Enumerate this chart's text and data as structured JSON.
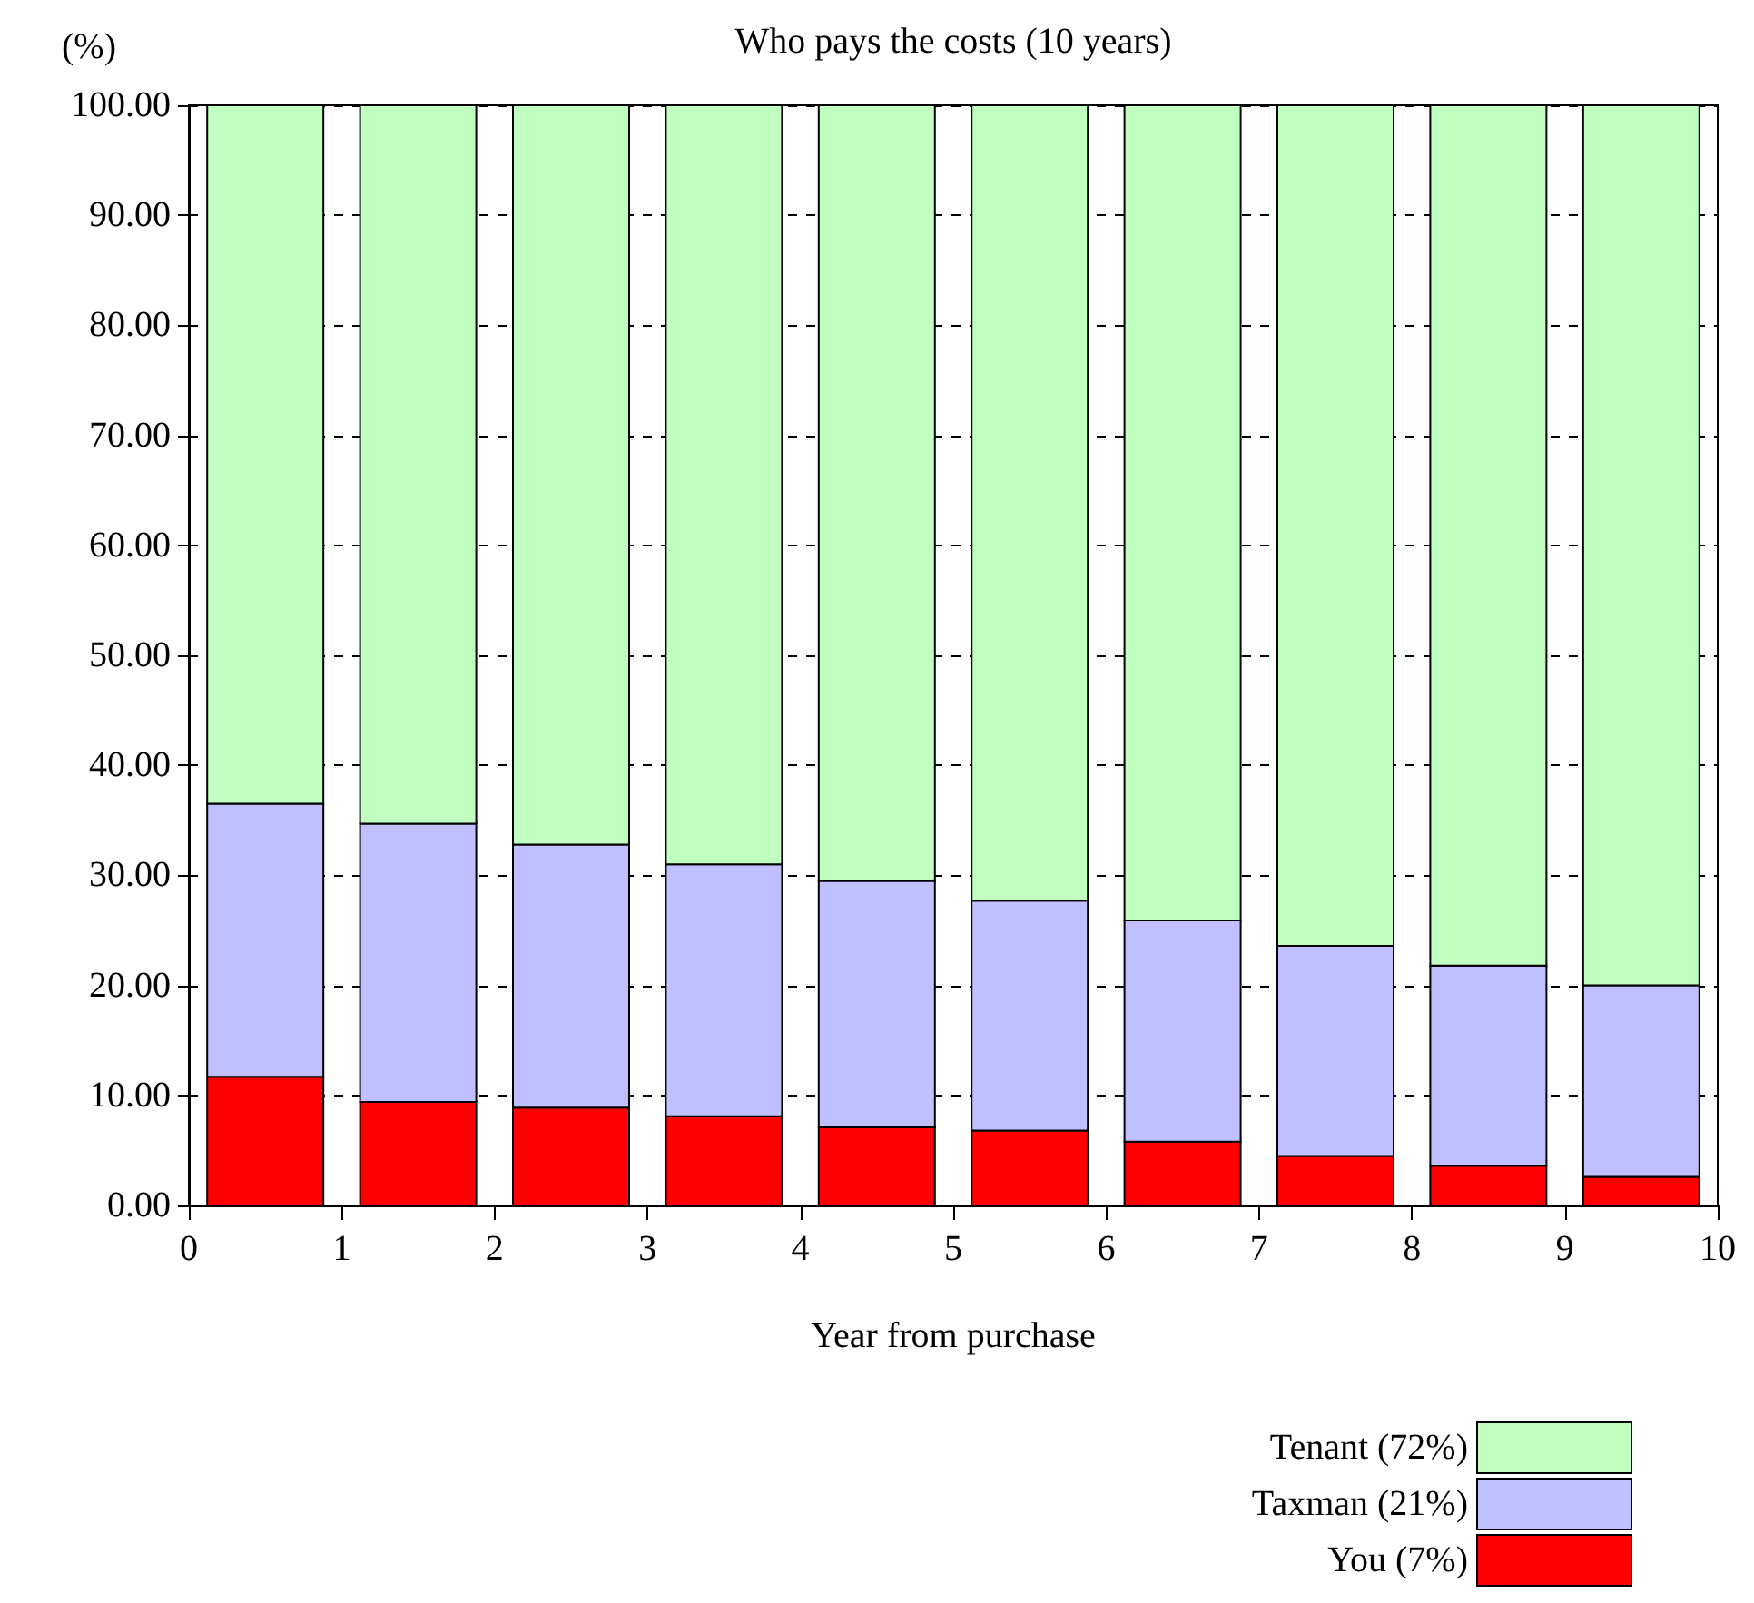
{
  "chart_data": {
    "type": "bar",
    "title": "Who pays the costs (10 years)",
    "ylabel": "(%)",
    "xlabel": "Year from purchase",
    "x": [
      0.5,
      1.5,
      2.5,
      3.5,
      4.5,
      5.5,
      6.5,
      7.5,
      8.5,
      9.5
    ],
    "stacked": true,
    "series": [
      {
        "name": "You (7%)",
        "color": "#ff0000",
        "values": [
          11.7,
          9.4,
          8.9,
          8.1,
          7.1,
          6.8,
          5.8,
          4.5,
          3.6,
          2.6
        ]
      },
      {
        "name": "Taxman (21%)",
        "color": "#c0c0ff",
        "values": [
          24.8,
          25.3,
          23.9,
          22.9,
          22.4,
          20.9,
          20.1,
          19.1,
          18.2,
          17.4
        ]
      },
      {
        "name": "Tenant (72%)",
        "color": "#c0ffc0",
        "values": [
          63.5,
          65.3,
          67.2,
          69.0,
          70.5,
          72.3,
          74.1,
          76.4,
          78.2,
          80.0
        ]
      }
    ],
    "xlim": [
      0,
      10
    ],
    "xticks": [
      0,
      1,
      2,
      3,
      4,
      5,
      6,
      7,
      8,
      9,
      10
    ],
    "ylim": [
      0,
      100
    ],
    "yticks": [
      {
        "value": 0,
        "label": "0.00"
      },
      {
        "value": 10,
        "label": "10.00"
      },
      {
        "value": 20,
        "label": "20.00"
      },
      {
        "value": 30,
        "label": "30.00"
      },
      {
        "value": 40,
        "label": "40.00"
      },
      {
        "value": 50,
        "label": "50.00"
      },
      {
        "value": 60,
        "label": "60.00"
      },
      {
        "value": 70,
        "label": "70.00"
      },
      {
        "value": 80,
        "label": "80.00"
      },
      {
        "value": 90,
        "label": "90.00"
      },
      {
        "value": 100,
        "label": "100.00"
      }
    ],
    "grid": "y",
    "legend": "bottom right"
  }
}
